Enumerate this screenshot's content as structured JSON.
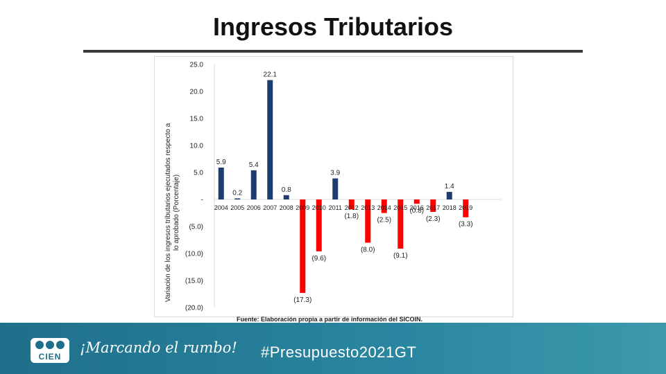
{
  "slide": {
    "title": "Ingresos Tributarios",
    "source": "Fuente: Elaboración propia a partir de información del SICOIN.",
    "footer": {
      "logo_text": "CIEN",
      "slogan": "¡Marcando el rumbo!",
      "hashtag": "#Presupuesto2021GT"
    }
  },
  "chart_data": {
    "type": "bar",
    "title": "",
    "xlabel": "",
    "ylabel": "Variación de los ingresos tributarios ejecutados respecto a lo aprobado (Porcentaje)",
    "ylim": [
      -20,
      25
    ],
    "yticks": [
      "25.0",
      "20.0",
      "15.0",
      "10.0",
      "5.0",
      "-",
      "(5.0)",
      "(10.0)",
      "(15.0)",
      "(20.0)"
    ],
    "ytick_values": [
      25,
      20,
      15,
      10,
      5,
      0,
      -5,
      -10,
      -15,
      -20
    ],
    "grid": false,
    "categories": [
      "2004",
      "2005",
      "2006",
      "2007",
      "2008",
      "2009",
      "2010",
      "2011",
      "2012",
      "2013",
      "2014",
      "2015",
      "2016",
      "2017",
      "2018",
      "2019"
    ],
    "values": [
      5.9,
      0.2,
      5.4,
      22.1,
      0.8,
      -17.3,
      -9.6,
      3.9,
      -1.8,
      -8.0,
      -2.5,
      -9.1,
      -0.8,
      -2.3,
      1.4,
      -3.3
    ],
    "data_labels": [
      "5.9",
      "0.2",
      "5.4",
      "22.1",
      "0.8",
      "(17.3)",
      "(9.6)",
      "3.9",
      "(1.8)",
      "(8.0)",
      "(2.5)",
      "(9.1)",
      "(0.8)",
      "(2.3)",
      "1.4",
      "(3.3)"
    ],
    "colors": {
      "positive": "#1f3c6e",
      "negative": "#ff0000"
    }
  }
}
